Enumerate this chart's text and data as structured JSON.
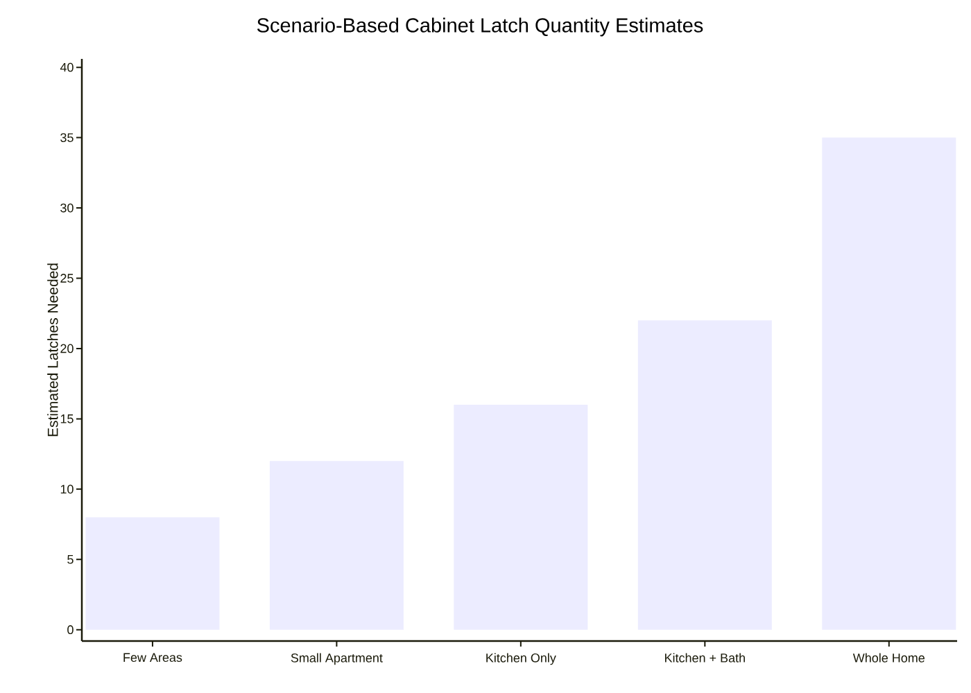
{
  "chart_data": {
    "type": "bar",
    "title": "Scenario-Based Cabinet Latch Quantity Estimates",
    "ylabel": "Estimated Latches Needed",
    "categories": [
      "Few Areas",
      "Small Apartment",
      "Kitchen Only",
      "Kitchen + Bath",
      "Whole Home"
    ],
    "values": [
      8,
      12,
      16,
      22,
      35
    ],
    "color": "#ececff",
    "ylim": [
      -0.8,
      40.6
    ],
    "yticks": [
      0,
      5,
      10,
      15,
      20,
      25,
      30,
      35,
      40
    ]
  }
}
